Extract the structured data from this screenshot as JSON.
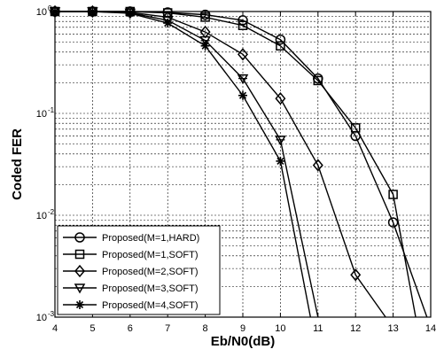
{
  "chart_data": {
    "type": "line",
    "title": "",
    "xlabel": "Eb/N0(dB)",
    "ylabel": "Coded FER",
    "xlim": [
      4,
      14
    ],
    "ylim": [
      0.001,
      1
    ],
    "yscale": "log",
    "grid": true,
    "legend_position": "bottom-left",
    "x_ticks": [
      "4",
      "5",
      "6",
      "7",
      "8",
      "9",
      "10",
      "11",
      "12",
      "13",
      "14"
    ],
    "y_ticks": [
      {
        "base": "10",
        "exp": "0"
      },
      {
        "base": "10",
        "exp": "-1"
      },
      {
        "base": "10",
        "exp": "-2"
      },
      {
        "base": "10",
        "exp": "-3"
      }
    ],
    "series": [
      {
        "name": "Proposed(M=1,HARD)",
        "marker": "circle",
        "x": [
          4,
          5,
          6,
          7,
          8,
          9,
          10,
          11,
          12,
          13,
          13.9
        ],
        "y": [
          1.0,
          1.0,
          1.0,
          0.98,
          0.93,
          0.82,
          0.53,
          0.22,
          0.06,
          0.0085,
          0.001
        ]
      },
      {
        "name": "Proposed(M=1,SOFT)",
        "marker": "square",
        "x": [
          4,
          5,
          6,
          7,
          8,
          9,
          10,
          11,
          12,
          13,
          13.6
        ],
        "y": [
          1.0,
          1.0,
          1.0,
          0.97,
          0.88,
          0.73,
          0.46,
          0.21,
          0.072,
          0.016,
          0.001
        ]
      },
      {
        "name": "Proposed(M=2,SOFT)",
        "marker": "diamond",
        "x": [
          4,
          5,
          6,
          7,
          8,
          9,
          10,
          11,
          12,
          12.8
        ],
        "y": [
          1.0,
          1.0,
          0.98,
          0.88,
          0.63,
          0.38,
          0.14,
          0.031,
          0.0026,
          0.001
        ]
      },
      {
        "name": "Proposed(M=3,SOFT)",
        "marker": "triangle-down",
        "x": [
          4,
          5,
          6,
          7,
          8,
          9,
          10,
          11
        ],
        "y": [
          1.0,
          1.0,
          0.97,
          0.82,
          0.52,
          0.22,
          0.055,
          0.001
        ]
      },
      {
        "name": "Proposed(M=4,SOFT)",
        "marker": "star",
        "x": [
          4,
          5,
          6,
          7,
          8,
          9,
          10,
          10.8
        ],
        "y": [
          1.0,
          1.0,
          0.96,
          0.77,
          0.46,
          0.15,
          0.034,
          0.001
        ]
      }
    ]
  }
}
